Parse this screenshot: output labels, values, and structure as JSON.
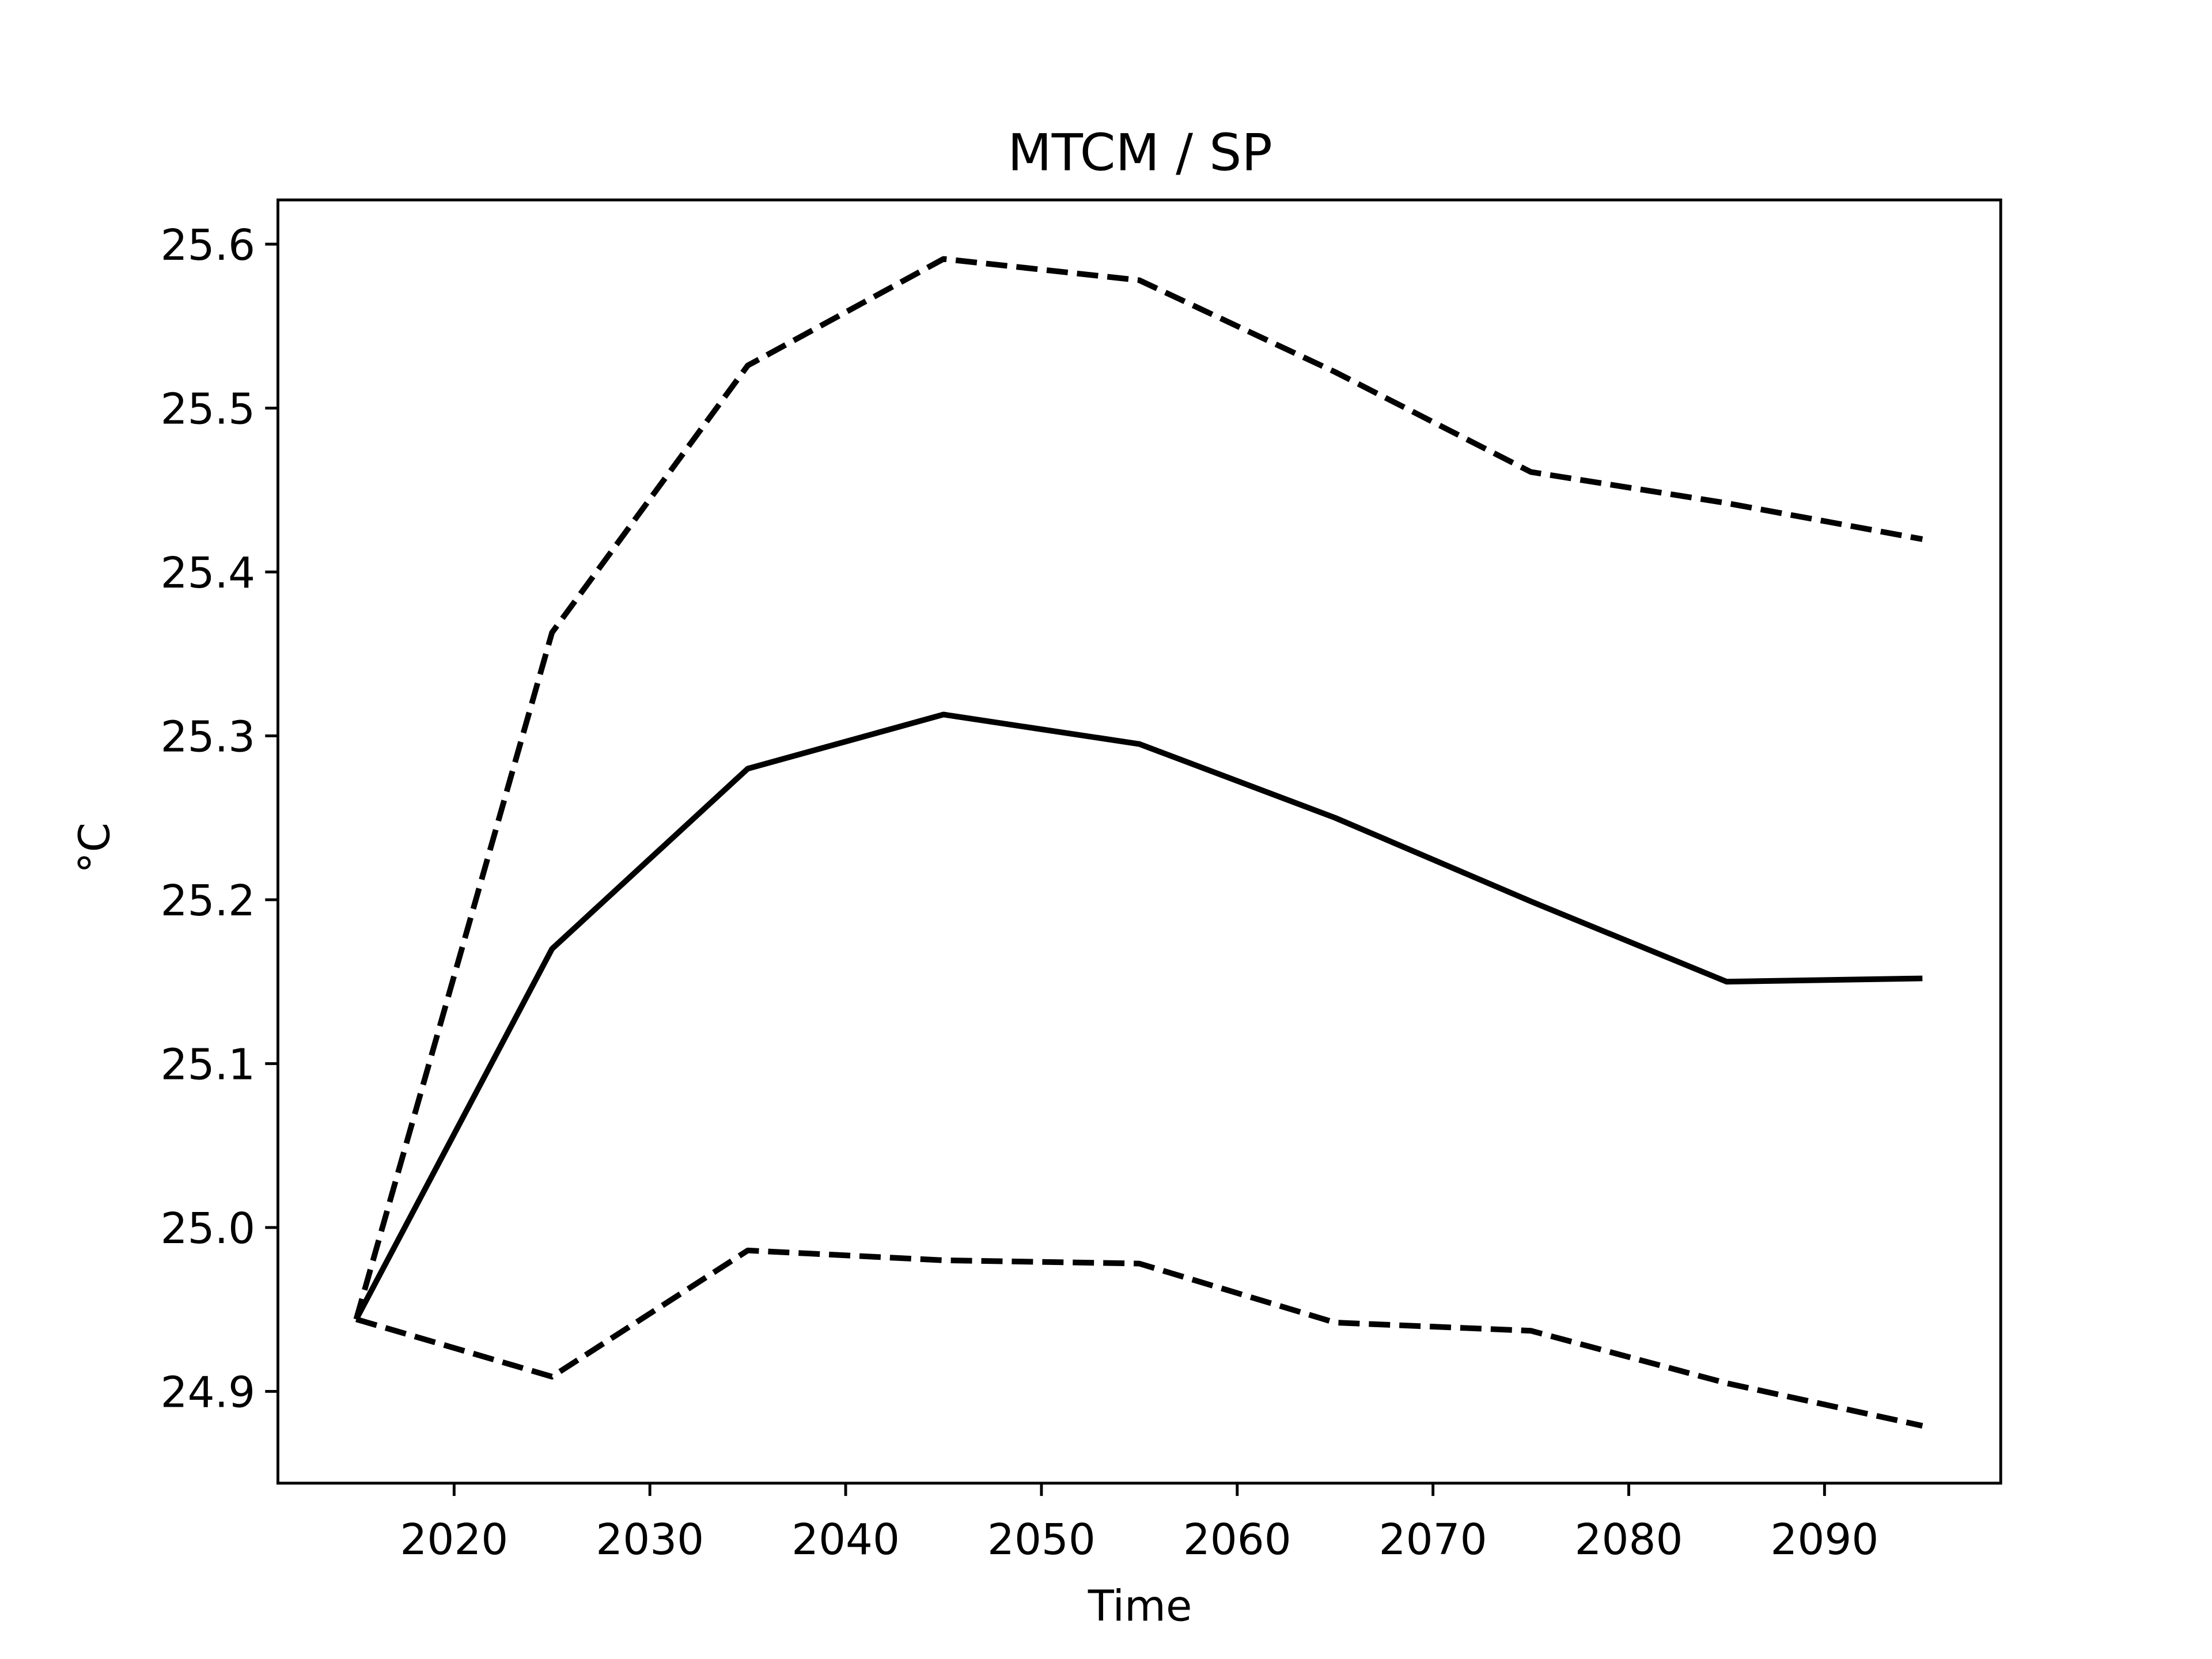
{
  "chart_data": {
    "type": "line",
    "title": "MTCM / SP",
    "xlabel": "Time",
    "ylabel": "°C",
    "x": [
      2015,
      2025,
      2035,
      2045,
      2055,
      2065,
      2075,
      2085,
      2095
    ],
    "series": [
      {
        "color": "#000000",
        "style": "solid",
        "values": [
          24.944,
          25.17,
          25.28,
          25.313,
          25.295,
          25.25,
          25.199,
          25.15,
          25.152
        ]
      },
      {
        "color": "#000000",
        "style": "dashed",
        "values": [
          24.944,
          25.363,
          25.526,
          25.591,
          25.578,
          25.522,
          25.461,
          25.442,
          25.42
        ]
      },
      {
        "color": "#000000",
        "style": "dashed",
        "values": [
          24.944,
          24.909,
          24.986,
          24.98,
          24.978,
          24.942,
          24.937,
          24.905,
          24.879
        ]
      }
    ],
    "xlim": [
      2011,
      2099
    ],
    "ylim": [
      24.844,
      25.627
    ],
    "xticks": [
      2020,
      2030,
      2040,
      2050,
      2060,
      2070,
      2080,
      2090
    ],
    "yticks": [
      24.9,
      {
        "value": 25,
        "label": "25.0"
      },
      25.1,
      25.2,
      25.3,
      25.4,
      25.5,
      25.6
    ],
    "grid": false
  }
}
